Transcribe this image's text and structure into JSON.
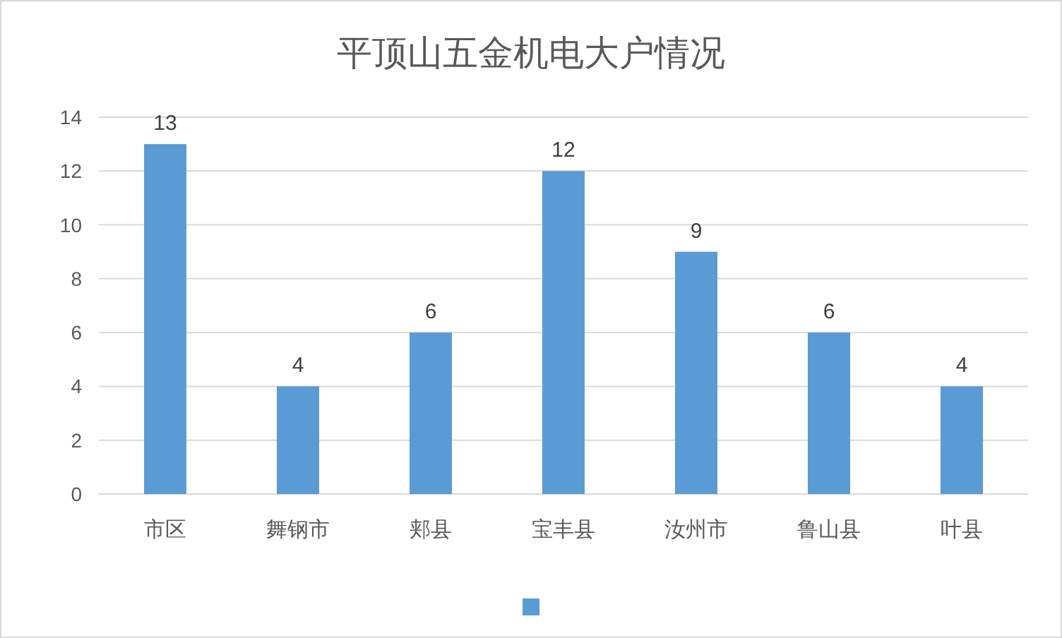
{
  "chart_data": {
    "type": "bar",
    "title": "平顶山五金机电大户情况",
    "categories": [
      "市区",
      "舞钢市",
      "郏县",
      "宝丰县",
      "汝州市",
      "鲁山县",
      "叶县"
    ],
    "values": [
      13,
      4,
      6,
      12,
      9,
      6,
      4
    ],
    "color": "#5b9bd5",
    "ylim": [
      0,
      14
    ],
    "yticks": [
      0,
      2,
      4,
      6,
      8,
      10,
      12,
      14
    ],
    "grid": "y",
    "data_labels": true
  }
}
